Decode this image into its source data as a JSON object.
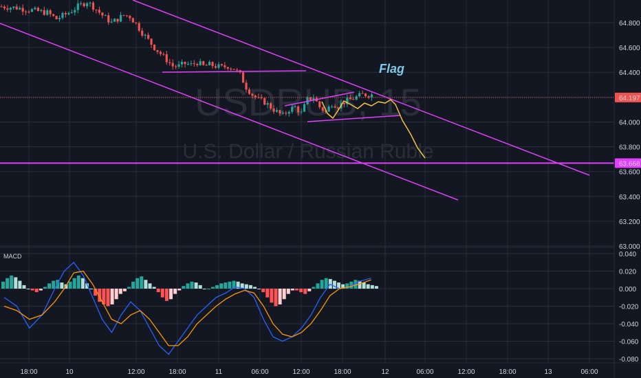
{
  "chart_data": [
    {
      "type": "candlestick",
      "watermark_symbol": "USDRUB, 15",
      "watermark_name": "U.S. Dollar / Russian Ruble",
      "annotation": "Flag",
      "last_price_label": "64.197",
      "level_label": "63.668",
      "last_price": 64.197,
      "horizontal_level": 63.668,
      "ylim": [
        63.0,
        65.0
      ],
      "y_ticks": [
        "64.800",
        "64.600",
        "64.400",
        "64.200",
        "64.000",
        "63.800",
        "63.600",
        "63.400",
        "63.200",
        "63.000"
      ],
      "y_tick_values": [
        64.8,
        64.6,
        64.4,
        64.2,
        64.0,
        63.8,
        63.6,
        63.4,
        63.2,
        63.0
      ],
      "x_ticks": [
        "18:00",
        "10",
        "12:00",
        "18:00",
        "11",
        "06:00",
        "12:00",
        "18:00",
        "12",
        "06:00",
        "12:00",
        "18:00",
        "13",
        "06:00"
      ],
      "close_path": [
        [
          0,
          64.93
        ],
        [
          5,
          64.92
        ],
        [
          10,
          64.9
        ],
        [
          15,
          64.88
        ],
        [
          18,
          64.83
        ],
        [
          22,
          64.88
        ],
        [
          25,
          64.93
        ],
        [
          28,
          64.97
        ],
        [
          30,
          64.93
        ],
        [
          33,
          64.86
        ],
        [
          36,
          64.8
        ],
        [
          38,
          64.83
        ],
        [
          40,
          64.86
        ],
        [
          42,
          64.85
        ],
        [
          44,
          64.79
        ],
        [
          46,
          64.72
        ],
        [
          48,
          64.66
        ],
        [
          50,
          64.6
        ],
        [
          52,
          64.55
        ],
        [
          54,
          64.5
        ],
        [
          56,
          64.45
        ],
        [
          58,
          64.45
        ],
        [
          60,
          64.47
        ],
        [
          62,
          64.46
        ],
        [
          64,
          64.48
        ],
        [
          66,
          64.45
        ],
        [
          68,
          64.46
        ],
        [
          70,
          64.45
        ],
        [
          72,
          64.44
        ],
        [
          74,
          64.45
        ],
        [
          76,
          64.43
        ],
        [
          78,
          64.38
        ],
        [
          80,
          64.28
        ],
        [
          82,
          64.22
        ],
        [
          84,
          64.18
        ],
        [
          86,
          64.16
        ],
        [
          88,
          64.12
        ],
        [
          90,
          64.08
        ],
        [
          92,
          64.05
        ],
        [
          94,
          64.1
        ],
        [
          96,
          64.12
        ],
        [
          98,
          64.07
        ],
        [
          100,
          64.18
        ],
        [
          102,
          64.2
        ],
        [
          104,
          64.12
        ],
        [
          106,
          64.08
        ],
        [
          108,
          64.15
        ],
        [
          110,
          64.13
        ],
        [
          112,
          64.16
        ],
        [
          114,
          64.18
        ],
        [
          116,
          64.2
        ],
        [
          118,
          64.22
        ]
      ],
      "projection": [
        [
          118,
          64.19
        ],
        [
          120,
          64.13
        ],
        [
          122,
          64.16
        ],
        [
          124,
          64.2
        ],
        [
          126,
          64.1
        ],
        [
          128,
          64.0
        ],
        [
          130,
          63.9
        ],
        [
          132,
          63.8
        ],
        [
          134,
          63.72
        ]
      ],
      "channel_upper": [
        [
          81,
          65.01
        ],
        [
          363,
          63.57
        ]
      ],
      "channel_lower": [
        [
          0,
          64.9
        ],
        [
          282,
          63.38
        ]
      ],
      "flag_top": [
        [
          87,
          64.16
        ],
        [
          109,
          64.23
        ]
      ],
      "flag_bottom": [
        [
          95,
          64.0
        ],
        [
          124,
          64.05
        ]
      ],
      "prior_consolidation": [
        [
          50,
          64.41
        ],
        [
          94,
          64.42
        ]
      ],
      "macd": {
        "label": "MACD",
        "y_ticks": [
          "0.040",
          "0.020",
          "0.000",
          "-0.020",
          "-0.040",
          "-0.060",
          "-0.080"
        ],
        "y_tick_values": [
          0.04,
          0.02,
          0.0,
          -0.02,
          -0.04,
          -0.06,
          -0.08
        ],
        "ylim": [
          -0.085,
          0.045
        ],
        "histogram": [
          0.008,
          0.012,
          0.015,
          0.013,
          0.009,
          0.004,
          0.0,
          -0.002,
          -0.004,
          -0.002,
          0.002,
          0.006,
          0.009,
          0.01,
          0.007,
          0.005,
          0.008,
          0.012,
          0.015,
          0.012,
          0.006,
          0.0,
          -0.008,
          -0.015,
          -0.018,
          -0.02,
          -0.018,
          -0.012,
          -0.006,
          -0.003,
          0.002,
          0.008,
          0.012,
          0.014,
          0.01,
          0.006,
          0.002,
          -0.004,
          -0.01,
          -0.014,
          -0.012,
          -0.006,
          -0.002,
          0.003,
          0.006,
          0.008,
          0.007,
          0.004,
          0.0,
          0.0,
          0.002,
          0.004,
          0.006,
          0.007,
          0.008,
          0.009,
          0.008,
          0.006,
          0.005,
          0.004,
          0.002,
          0.0,
          -0.004,
          -0.01,
          -0.016,
          -0.02,
          -0.018,
          -0.012,
          -0.006,
          -0.002,
          -0.002,
          -0.004,
          -0.006,
          -0.003,
          0.002,
          0.006,
          0.01,
          0.012,
          0.011,
          0.009,
          0.007,
          0.005,
          0.006,
          0.008,
          0.01,
          0.009,
          0.007,
          0.005,
          0.004,
          0.003
        ],
        "macd_line": [
          [
            0,
            -0.01
          ],
          [
            4,
            -0.02
          ],
          [
            8,
            -0.045
          ],
          [
            12,
            -0.03
          ],
          [
            16,
            0.0
          ],
          [
            19,
            0.02
          ],
          [
            22,
            0.03
          ],
          [
            25,
            0.015
          ],
          [
            28,
            -0.01
          ],
          [
            31,
            -0.035
          ],
          [
            34,
            -0.05
          ],
          [
            37,
            -0.03
          ],
          [
            40,
            -0.015
          ],
          [
            43,
            -0.025
          ],
          [
            46,
            -0.045
          ],
          [
            49,
            -0.065
          ],
          [
            52,
            -0.075
          ],
          [
            55,
            -0.06
          ],
          [
            58,
            -0.045
          ],
          [
            61,
            -0.03
          ],
          [
            64,
            -0.02
          ],
          [
            67,
            -0.01
          ],
          [
            70,
            -0.005
          ],
          [
            73,
            0.002
          ],
          [
            76,
            0.0
          ],
          [
            79,
            -0.01
          ],
          [
            82,
            -0.035
          ],
          [
            85,
            -0.055
          ],
          [
            88,
            -0.06
          ],
          [
            91,
            -0.055
          ],
          [
            94,
            -0.045
          ],
          [
            97,
            -0.03
          ],
          [
            100,
            -0.01
          ],
          [
            103,
            0.005
          ],
          [
            106,
            0.0
          ],
          [
            109,
            0.002
          ],
          [
            112,
            0.008
          ],
          [
            116,
            0.012
          ]
        ],
        "signal_line": [
          [
            0,
            -0.02
          ],
          [
            4,
            -0.025
          ],
          [
            8,
            -0.035
          ],
          [
            12,
            -0.03
          ],
          [
            16,
            -0.015
          ],
          [
            19,
            0.0
          ],
          [
            22,
            0.018
          ],
          [
            25,
            0.02
          ],
          [
            28,
            0.005
          ],
          [
            31,
            -0.015
          ],
          [
            34,
            -0.035
          ],
          [
            37,
            -0.04
          ],
          [
            40,
            -0.03
          ],
          [
            43,
            -0.025
          ],
          [
            46,
            -0.035
          ],
          [
            49,
            -0.05
          ],
          [
            52,
            -0.065
          ],
          [
            55,
            -0.065
          ],
          [
            58,
            -0.055
          ],
          [
            61,
            -0.04
          ],
          [
            64,
            -0.03
          ],
          [
            67,
            -0.02
          ],
          [
            70,
            -0.012
          ],
          [
            73,
            -0.006
          ],
          [
            76,
            -0.002
          ],
          [
            79,
            -0.005
          ],
          [
            82,
            -0.02
          ],
          [
            85,
            -0.04
          ],
          [
            88,
            -0.052
          ],
          [
            91,
            -0.055
          ],
          [
            94,
            -0.05
          ],
          [
            97,
            -0.04
          ],
          [
            100,
            -0.025
          ],
          [
            103,
            -0.008
          ],
          [
            106,
            0.0
          ],
          [
            109,
            0.002
          ],
          [
            112,
            0.005
          ],
          [
            116,
            0.01
          ]
        ]
      }
    }
  ],
  "colors": {
    "background": "#131722",
    "grid": "#2a2e39",
    "candle_up": "#26a69a",
    "candle_down": "#ef5350",
    "trendline": "#e040fb",
    "projection": "#f5c342",
    "flag_label": "#7fc8e6",
    "macd_line": "#2962ff",
    "signal_line": "#ff9800",
    "hist_pos_strong": "#26a69a",
    "hist_pos_weak": "#b2dfdb",
    "hist_neg_strong": "#ff5252",
    "hist_neg_weak": "#ffcdd2",
    "last_price_bg": "#ef5350",
    "level_bg": "#e040fb"
  }
}
